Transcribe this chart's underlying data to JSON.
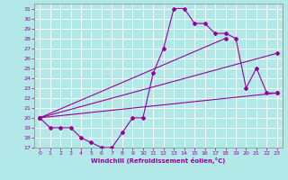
{
  "background_color": "#b2e8e8",
  "grid_color": "#ffffff",
  "line_color": "#990099",
  "xlabel": "Windchill (Refroidissement éolien,°C)",
  "xticks": [
    0,
    1,
    2,
    3,
    4,
    5,
    6,
    7,
    8,
    9,
    10,
    11,
    12,
    13,
    14,
    15,
    16,
    17,
    18,
    19,
    20,
    21,
    22,
    23
  ],
  "yticks": [
    17,
    18,
    19,
    20,
    21,
    22,
    23,
    24,
    25,
    26,
    27,
    28,
    29,
    30,
    31
  ],
  "xlim": [
    -0.5,
    23.5
  ],
  "ylim": [
    17,
    31.5
  ],
  "curve1": {
    "x": [
      0,
      1,
      2,
      3,
      4,
      5,
      6,
      7,
      8,
      9,
      10,
      11,
      12,
      13,
      14,
      15,
      16,
      17,
      18,
      19,
      20,
      21,
      22,
      23
    ],
    "y": [
      20,
      19,
      19,
      19,
      18,
      17.5,
      17,
      17,
      18.5,
      20,
      20,
      24.5,
      27,
      31,
      31,
      29.5,
      29.5,
      28.5,
      28.5,
      28,
      23,
      25,
      22.5,
      22.5
    ]
  },
  "curve2": {
    "x": [
      0,
      18
    ],
    "y": [
      20,
      28
    ]
  },
  "curve3": {
    "x": [
      0,
      23
    ],
    "y": [
      20,
      26.5
    ]
  },
  "curve4": {
    "x": [
      0,
      23
    ],
    "y": [
      20,
      22.5
    ]
  }
}
